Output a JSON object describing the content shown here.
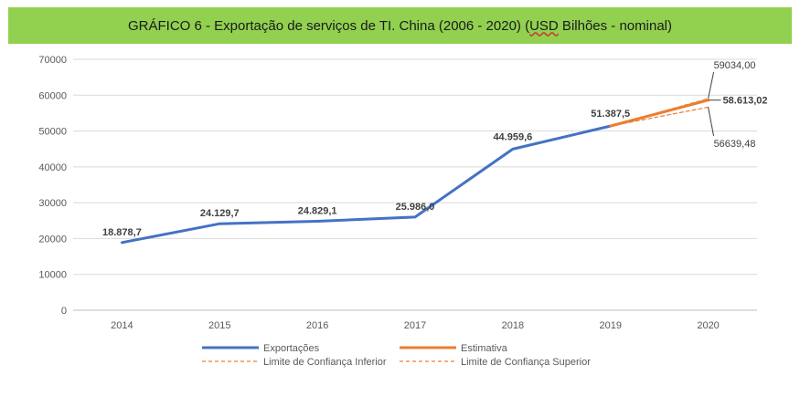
{
  "chart_data": {
    "type": "line",
    "title_prefix": "GRÁFICO 6 - Exportação de serviços de TI. China (2006 - 2020) (",
    "title_usd": "USD",
    "title_suffix": " Bilhões - nominal)",
    "categories": [
      "2014",
      "2015",
      "2016",
      "2017",
      "2018",
      "2019",
      "2020"
    ],
    "ylim": [
      0,
      70000
    ],
    "yticks": [
      0,
      10000,
      20000,
      30000,
      40000,
      50000,
      60000,
      70000
    ],
    "ytick_labels": [
      "0",
      "10000",
      "20000",
      "30000",
      "40000",
      "50000",
      "60000",
      "70000"
    ],
    "grid": true,
    "series": [
      {
        "name": "Exportações",
        "color": "#4472c4",
        "style": "solid",
        "values": [
          18878.7,
          24129.7,
          24829.1,
          25986.0,
          44959.6,
          51387.5,
          null
        ],
        "labels": [
          "18.878,7",
          "24.129,7",
          "24.829,1",
          "25.986,0",
          "44.959,6",
          "51.387,5",
          ""
        ]
      },
      {
        "name": "Estimativa",
        "color": "#ed7d31",
        "style": "solid",
        "values": [
          null,
          null,
          null,
          null,
          null,
          51387.5,
          58613.02
        ],
        "labels": [
          "",
          "",
          "",
          "",
          "",
          "",
          "58.613,02"
        ]
      },
      {
        "name": "Limite de Confiança Inferior",
        "color": "#ed7d31",
        "style": "dashed",
        "values": [
          null,
          null,
          null,
          null,
          null,
          51387.5,
          56639.48
        ],
        "labels": [
          "",
          "",
          "",
          "",
          "",
          "",
          "56639,48"
        ]
      },
      {
        "name": "Limite de Confiança Superior",
        "color": "#ed7d31",
        "style": "dashed",
        "values": [
          null,
          null,
          null,
          null,
          null,
          51387.5,
          59034.0
        ],
        "labels": [
          "",
          "",
          "",
          "",
          "",
          "",
          "59034,00"
        ]
      }
    ],
    "legend_position": "bottom"
  }
}
